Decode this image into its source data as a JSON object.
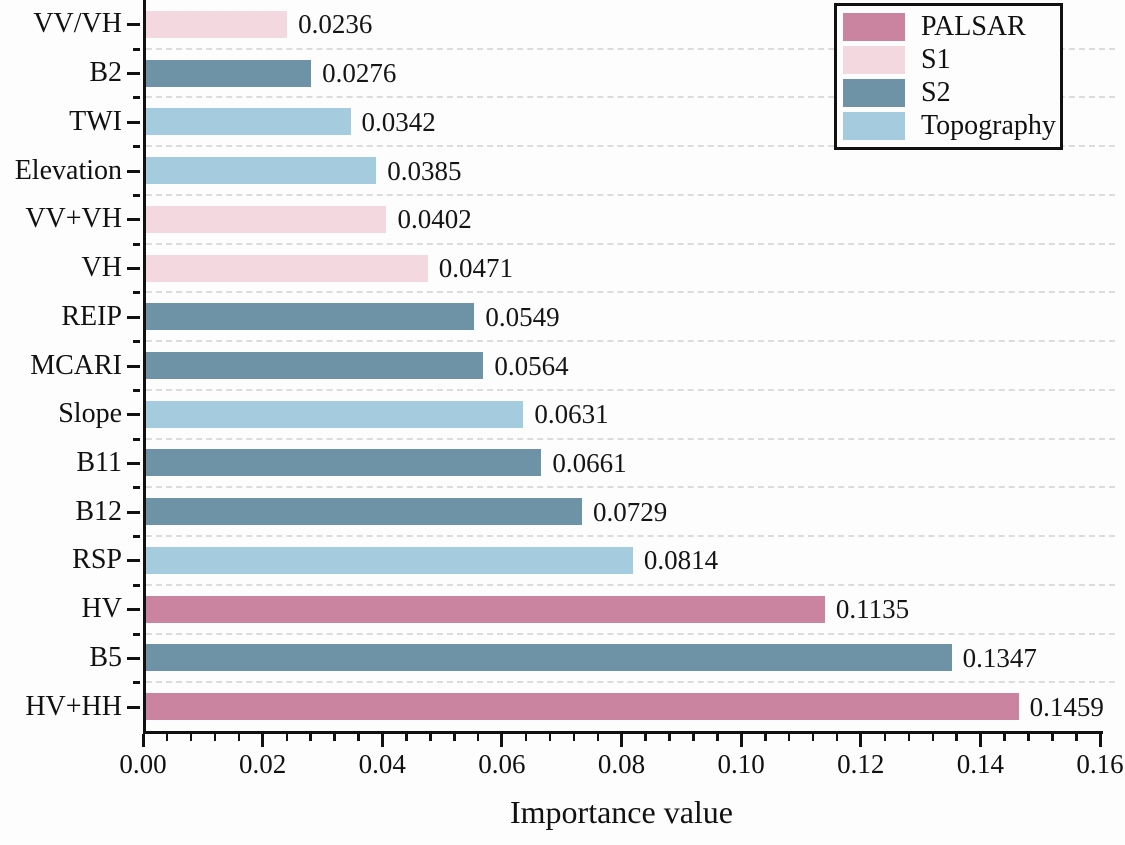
{
  "chart_data": {
    "type": "bar",
    "orientation": "horizontal",
    "xlabel": "Importance value",
    "xlim": [
      0,
      0.16
    ],
    "x_major_ticks": [
      0,
      0.02,
      0.04,
      0.06,
      0.08,
      0.1,
      0.12,
      0.14,
      0.16
    ],
    "x_tick_labels": [
      "0.00",
      "0.02",
      "0.04",
      "0.06",
      "0.08",
      "0.10",
      "0.12",
      "0.14",
      "0.16"
    ],
    "x_minor_tick_step": 0.004,
    "grid": {
      "horizontal_dashed_between_categories": true
    },
    "legend": {
      "position": "top-right",
      "entries": [
        {
          "label": "PALSAR",
          "color": "#ca84a0"
        },
        {
          "label": "S1",
          "color": "#f3d8df"
        },
        {
          "label": "S2",
          "color": "#6e92a6"
        },
        {
          "label": "Topography",
          "color": "#a4cbde"
        }
      ]
    },
    "bars": [
      {
        "category": "VV/VH",
        "value": 0.0236,
        "value_label": "0.0236",
        "group": "S1"
      },
      {
        "category": "B2",
        "value": 0.0276,
        "value_label": "0.0276",
        "group": "S2"
      },
      {
        "category": "TWI",
        "value": 0.0342,
        "value_label": "0.0342",
        "group": "Topography"
      },
      {
        "category": "Elevation",
        "value": 0.0385,
        "value_label": "0.0385",
        "group": "Topography"
      },
      {
        "category": "VV+VH",
        "value": 0.0402,
        "value_label": "0.0402",
        "group": "S1"
      },
      {
        "category": "VH",
        "value": 0.0471,
        "value_label": "0.0471",
        "group": "S1"
      },
      {
        "category": "REIP",
        "value": 0.0549,
        "value_label": "0.0549",
        "group": "S2"
      },
      {
        "category": "MCARI",
        "value": 0.0564,
        "value_label": "0.0564",
        "group": "S2"
      },
      {
        "category": "Slope",
        "value": 0.0631,
        "value_label": "0.0631",
        "group": "Topography"
      },
      {
        "category": "B11",
        "value": 0.0661,
        "value_label": "0.0661",
        "group": "S2"
      },
      {
        "category": "B12",
        "value": 0.0729,
        "value_label": "0.0729",
        "group": "S2"
      },
      {
        "category": "RSP",
        "value": 0.0814,
        "value_label": "0.0814",
        "group": "Topography"
      },
      {
        "category": "HV",
        "value": 0.1135,
        "value_label": "0.1135",
        "group": "PALSAR"
      },
      {
        "category": "B5",
        "value": 0.1347,
        "value_label": "0.1347",
        "group": "S2"
      },
      {
        "category": "HV+HH",
        "value": 0.1459,
        "value_label": "0.1459",
        "group": "PALSAR"
      }
    ],
    "colors": {
      "PALSAR": "#ca84a0",
      "S1": "#f3d8df",
      "S2": "#6e92a6",
      "Topography": "#a4cbde",
      "axis": "#111111",
      "grid": "#dcdcdc",
      "text": "#111111",
      "background": "#fdfdfd"
    }
  }
}
